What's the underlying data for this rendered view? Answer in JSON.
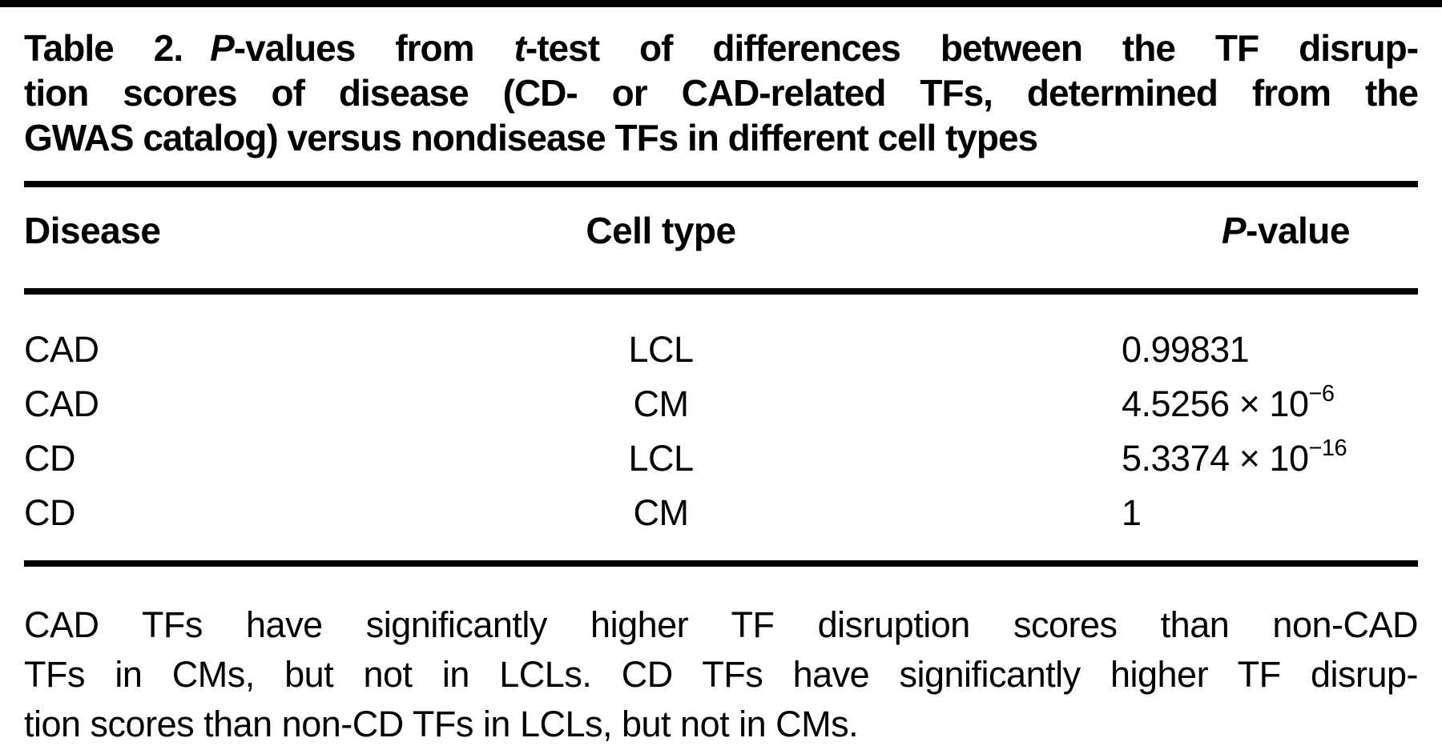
{
  "page": {
    "background": "#ffffff",
    "text_color": "#000000"
  },
  "table": {
    "label": "Table 2.",
    "title": {
      "line1": {
        "p_italic": "P",
        "after_p": "-values from ",
        "t_italic": "t",
        "after_t": "-test of differences between the TF disrup-"
      },
      "line2": "tion scores of disease (CD- or CAD-related TFs, determined from the",
      "line3": "GWAS catalog) versus nondisease TFs in different cell types"
    },
    "columns": {
      "disease": "Disease",
      "cell_type": "Cell type",
      "p_value": {
        "p_italic": "P",
        "rest": "-value"
      }
    },
    "rows": [
      {
        "disease": "CAD",
        "cell_type": "LCL",
        "p_base": "0.99831",
        "p_sup": ""
      },
      {
        "disease": "CAD",
        "cell_type": "CM",
        "p_base": "4.5256 × 10",
        "p_sup": "−6"
      },
      {
        "disease": "CD",
        "cell_type": "LCL",
        "p_base": "5.3374 × 10",
        "p_sup": "−16"
      },
      {
        "disease": "CD",
        "cell_type": "CM",
        "p_base": "1",
        "p_sup": ""
      }
    ],
    "footnote": {
      "line1": "CAD TFs have significantly higher TF disruption scores than non-CAD",
      "line2": "TFs in CMs, but not in LCLs. CD TFs have significantly higher TF disrup-",
      "line3": "tion scores than non-CD TFs in LCLs, but not in CMs."
    }
  }
}
